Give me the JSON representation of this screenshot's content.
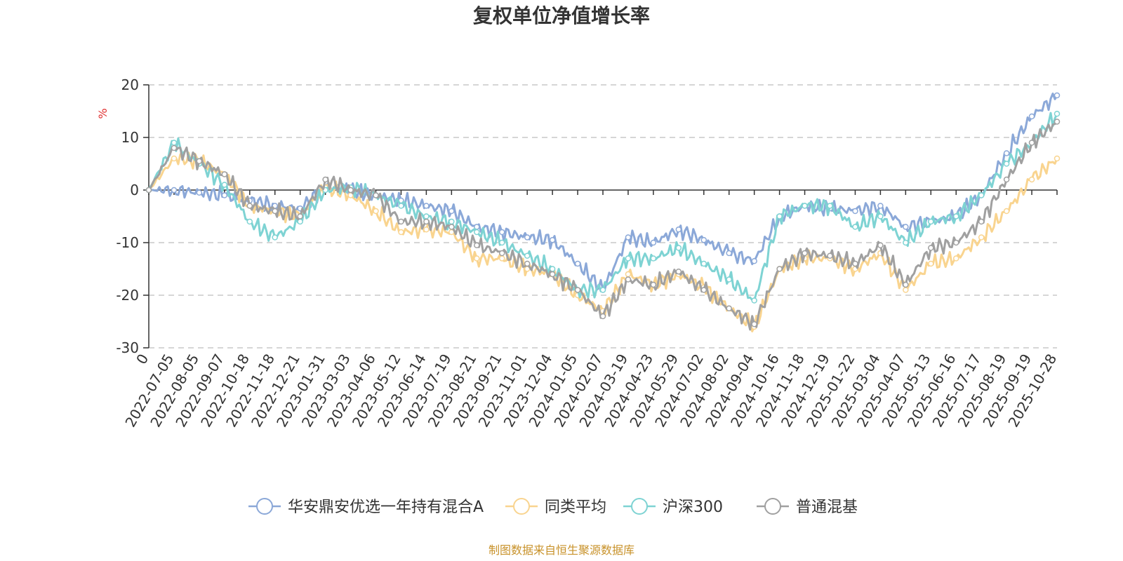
{
  "chart_data": {
    "type": "line",
    "title": "复权单位净值增长率",
    "ylabel": "%",
    "ylim": [
      -30,
      20
    ],
    "yticks": [
      20,
      10,
      0,
      -10,
      -20,
      -30
    ],
    "x_ticks": [
      "0",
      "2022-07-05",
      "2022-08-05",
      "2022-09-07",
      "2022-10-18",
      "2022-11-18",
      "2022-12-21",
      "2023-01-31",
      "2023-03-03",
      "2023-04-06",
      "2023-05-12",
      "2023-06-14",
      "2023-07-19",
      "2023-08-21",
      "2023-09-21",
      "2023-11-01",
      "2023-12-04",
      "2024-01-05",
      "2024-02-07",
      "2024-03-19",
      "2024-04-23",
      "2024-05-29",
      "2024-07-02",
      "2024-08-02",
      "2024-09-04",
      "2024-10-16",
      "2024-11-18",
      "2024-12-19",
      "2025-01-22",
      "2025-03-04",
      "2025-04-07",
      "2025-05-13",
      "2025-06-16",
      "2025-07-17",
      "2025-08-19",
      "2025-09-19",
      "2025-10-28"
    ],
    "grid": true,
    "legend_position": "bottom",
    "series": [
      {
        "name": "华安鼎安优选一年持有混合A",
        "color": "#8ba8d8",
        "values": [
          0,
          0,
          -0.5,
          -1,
          -2,
          -3,
          -3.5,
          0.5,
          0,
          -1,
          -2,
          -3,
          -4,
          -7,
          -8,
          -9,
          -9.5,
          -14,
          -19,
          -9,
          -10,
          -7.5,
          -9.5,
          -12,
          -13.5,
          -5,
          -3,
          -3.5,
          -4,
          -3,
          -7,
          -6,
          -5,
          -1,
          7,
          14,
          18
        ]
      },
      {
        "name": "同类平均",
        "color": "#f9d48f",
        "values": [
          0,
          6,
          5.5,
          3,
          -3,
          -4,
          -5,
          0.5,
          -1,
          -4,
          -8,
          -7.5,
          -8,
          -13,
          -13,
          -15,
          -16,
          -20,
          -23,
          -16,
          -18,
          -16,
          -18.5,
          -22.5,
          -26,
          -15,
          -13,
          -13,
          -15,
          -12,
          -19,
          -14,
          -13,
          -9,
          -4,
          2,
          6
        ]
      },
      {
        "name": "沪深300",
        "color": "#7ed3d3",
        "values": [
          0,
          9,
          5,
          1,
          -6,
          -9,
          -6,
          0,
          0.5,
          -1,
          -3,
          -5,
          -6,
          -8,
          -10,
          -12.5,
          -15,
          -19,
          -19,
          -13,
          -13,
          -11,
          -14,
          -17,
          -21,
          -5,
          -3,
          -3,
          -7,
          -5,
          -10,
          -6,
          -5,
          -1,
          5,
          9,
          14.5
        ]
      },
      {
        "name": "普通混基",
        "color": "#a0a0a0",
        "values": [
          0,
          8,
          5.5,
          3,
          -3,
          -4,
          -5,
          2,
          0,
          -1,
          -6,
          -6,
          -7,
          -10.5,
          -12,
          -14,
          -16,
          -19,
          -24,
          -17,
          -18,
          -15.5,
          -19,
          -22.5,
          -25.5,
          -15,
          -12,
          -12.5,
          -14,
          -10.5,
          -18,
          -11,
          -10,
          -6,
          2,
          9,
          13
        ]
      }
    ]
  },
  "source_note": "制图数据来自恒生聚源数据库"
}
